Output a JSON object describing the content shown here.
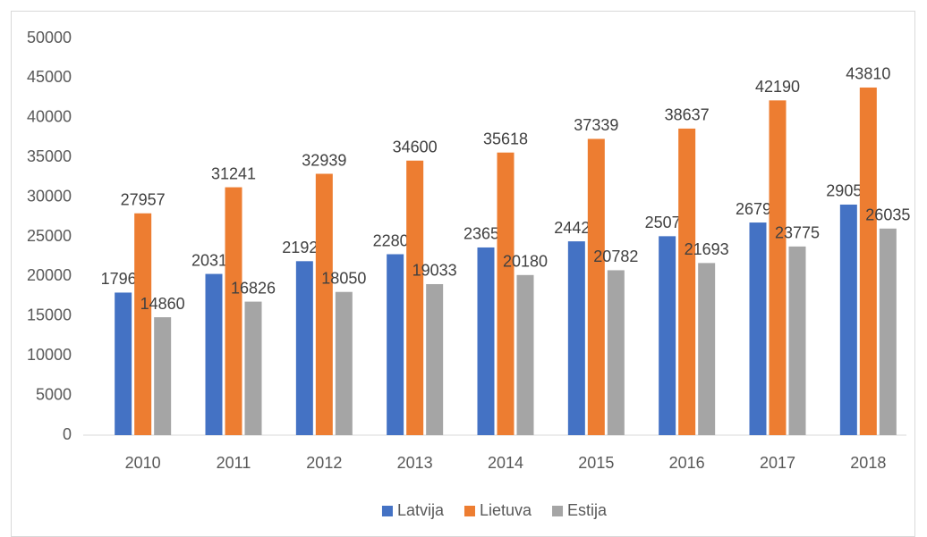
{
  "chart_data": {
    "type": "bar",
    "categories": [
      "2010",
      "2011",
      "2012",
      "2013",
      "2014",
      "2015",
      "2016",
      "2017",
      "2018"
    ],
    "series": [
      {
        "name": "Latvija",
        "color": "#4472c4",
        "values": [
          17967,
          20319,
          21925,
          22803,
          23654,
          24425,
          25072,
          26797,
          29056
        ]
      },
      {
        "name": "Lietuva",
        "color": "#ed7d31",
        "values": [
          27957,
          31241,
          32939,
          34600,
          35618,
          37339,
          38637,
          42190,
          43810
        ]
      },
      {
        "name": "Estija",
        "color": "#a5a5a5",
        "values": [
          14860,
          16826,
          18050,
          19033,
          20180,
          20782,
          21693,
          23775,
          26035
        ]
      }
    ],
    "ylim": [
      0,
      50000
    ],
    "yticks": [
      0,
      5000,
      10000,
      15000,
      20000,
      25000,
      30000,
      35000,
      40000,
      45000,
      50000
    ],
    "grid": false,
    "legend": "bottom"
  }
}
